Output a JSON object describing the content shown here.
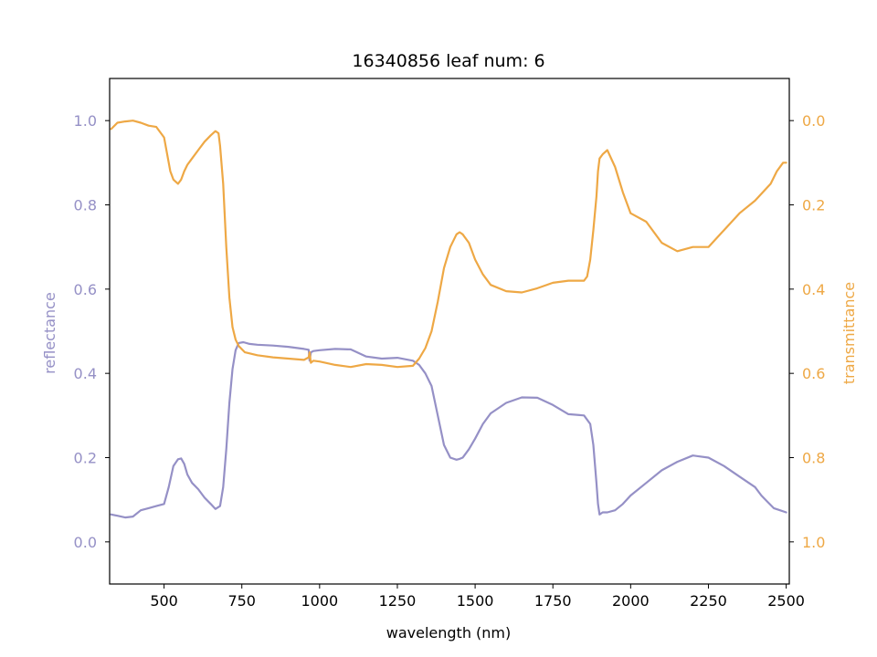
{
  "chart_data": {
    "type": "line",
    "title": "16340856 leaf num: 6",
    "xlabel": "wavelength (nm)",
    "ylabel_left": "reflectance",
    "ylabel_right": "transmittance",
    "xlim": [
      325,
      2510
    ],
    "ylim_left": [
      -0.1,
      1.1
    ],
    "ylim_right_inverted": [
      1.1,
      -0.1
    ],
    "x_ticks": [
      500,
      750,
      1000,
      1250,
      1500,
      1750,
      2000,
      2250,
      2500
    ],
    "x_tick_labels": [
      "500",
      "750",
      "1000",
      "1250",
      "1500",
      "1750",
      "2000",
      "2250",
      "2500"
    ],
    "y_left_ticks": [
      0.0,
      0.2,
      0.4,
      0.6,
      0.8,
      1.0
    ],
    "y_left_tick_labels": [
      "0.0",
      "0.2",
      "0.4",
      "0.6",
      "0.8",
      "1.0"
    ],
    "y_right_ticks": [
      0.0,
      0.2,
      0.4,
      0.6,
      0.8,
      1.0
    ],
    "y_right_tick_labels": [
      "0.0",
      "0.2",
      "0.4",
      "0.6",
      "0.8",
      "1.0"
    ],
    "grid": false,
    "colors": {
      "reflectance": "#9590c6",
      "transmittance": "#eea845",
      "axes": "#000000"
    },
    "series": [
      {
        "axis": "left",
        "color": "#9590c6",
        "x": [
          330,
          350,
          375,
          400,
          425,
          450,
          475,
          500,
          515,
          530,
          545,
          555,
          565,
          575,
          590,
          610,
          630,
          650,
          665,
          680,
          690,
          700,
          710,
          720,
          730,
          740,
          755,
          775,
          800,
          850,
          900,
          950,
          965,
          968,
          972,
          980,
          1000,
          1050,
          1100,
          1150,
          1200,
          1250,
          1300,
          1320,
          1340,
          1360,
          1380,
          1400,
          1420,
          1440,
          1450,
          1460,
          1480,
          1500,
          1525,
          1550,
          1600,
          1650,
          1700,
          1750,
          1800,
          1850,
          1870,
          1880,
          1890,
          1895,
          1900,
          1910,
          1925,
          1950,
          1975,
          2000,
          2050,
          2100,
          2150,
          2200,
          2250,
          2300,
          2350,
          2400,
          2420,
          2440,
          2460,
          2480,
          2500
        ],
        "y": [
          0.065,
          0.062,
          0.058,
          0.06,
          0.075,
          0.08,
          0.085,
          0.09,
          0.13,
          0.18,
          0.196,
          0.198,
          0.185,
          0.16,
          0.14,
          0.125,
          0.105,
          0.09,
          0.078,
          0.085,
          0.13,
          0.22,
          0.33,
          0.41,
          0.455,
          0.472,
          0.474,
          0.47,
          0.468,
          0.466,
          0.463,
          0.458,
          0.456,
          0.43,
          0.45,
          0.453,
          0.455,
          0.458,
          0.457,
          0.44,
          0.435,
          0.437,
          0.43,
          0.42,
          0.4,
          0.37,
          0.3,
          0.23,
          0.2,
          0.195,
          0.197,
          0.2,
          0.22,
          0.245,
          0.28,
          0.305,
          0.33,
          0.343,
          0.342,
          0.325,
          0.303,
          0.3,
          0.28,
          0.23,
          0.14,
          0.09,
          0.065,
          0.07,
          0.07,
          0.075,
          0.09,
          0.11,
          0.14,
          0.17,
          0.19,
          0.205,
          0.2,
          0.18,
          0.155,
          0.13,
          0.11,
          0.095,
          0.08,
          0.075,
          0.07
        ]
      },
      {
        "axis": "right",
        "color": "#eea845",
        "x": [
          330,
          350,
          375,
          400,
          425,
          450,
          475,
          500,
          510,
          520,
          530,
          545,
          555,
          565,
          575,
          590,
          610,
          630,
          650,
          665,
          675,
          680,
          690,
          700,
          710,
          720,
          730,
          740,
          760,
          800,
          850,
          900,
          950,
          965,
          968,
          972,
          980,
          1000,
          1050,
          1100,
          1150,
          1200,
          1250,
          1300,
          1320,
          1340,
          1360,
          1380,
          1400,
          1420,
          1440,
          1450,
          1460,
          1480,
          1500,
          1525,
          1550,
          1600,
          1650,
          1700,
          1750,
          1800,
          1850,
          1860,
          1870,
          1880,
          1890,
          1895,
          1900,
          1910,
          1925,
          1950,
          1975,
          2000,
          2050,
          2100,
          2150,
          2200,
          2250,
          2300,
          2350,
          2400,
          2450,
          2470,
          2490,
          2500
        ],
        "y": [
          0.02,
          0.005,
          0.002,
          0.0,
          0.005,
          0.012,
          0.015,
          0.04,
          0.08,
          0.12,
          0.14,
          0.15,
          0.14,
          0.12,
          0.105,
          0.09,
          0.07,
          0.05,
          0.035,
          0.025,
          0.03,
          0.06,
          0.15,
          0.3,
          0.42,
          0.49,
          0.52,
          0.535,
          0.55,
          0.557,
          0.562,
          0.565,
          0.568,
          0.562,
          0.55,
          0.575,
          0.57,
          0.572,
          0.58,
          0.585,
          0.578,
          0.58,
          0.585,
          0.582,
          0.565,
          0.54,
          0.5,
          0.43,
          0.35,
          0.3,
          0.27,
          0.265,
          0.27,
          0.29,
          0.33,
          0.365,
          0.39,
          0.405,
          0.408,
          0.398,
          0.385,
          0.38,
          0.38,
          0.37,
          0.33,
          0.26,
          0.18,
          0.12,
          0.09,
          0.08,
          0.07,
          0.11,
          0.17,
          0.22,
          0.24,
          0.29,
          0.31,
          0.3,
          0.3,
          0.26,
          0.22,
          0.19,
          0.15,
          0.12,
          0.1,
          0.1
        ]
      }
    ]
  }
}
